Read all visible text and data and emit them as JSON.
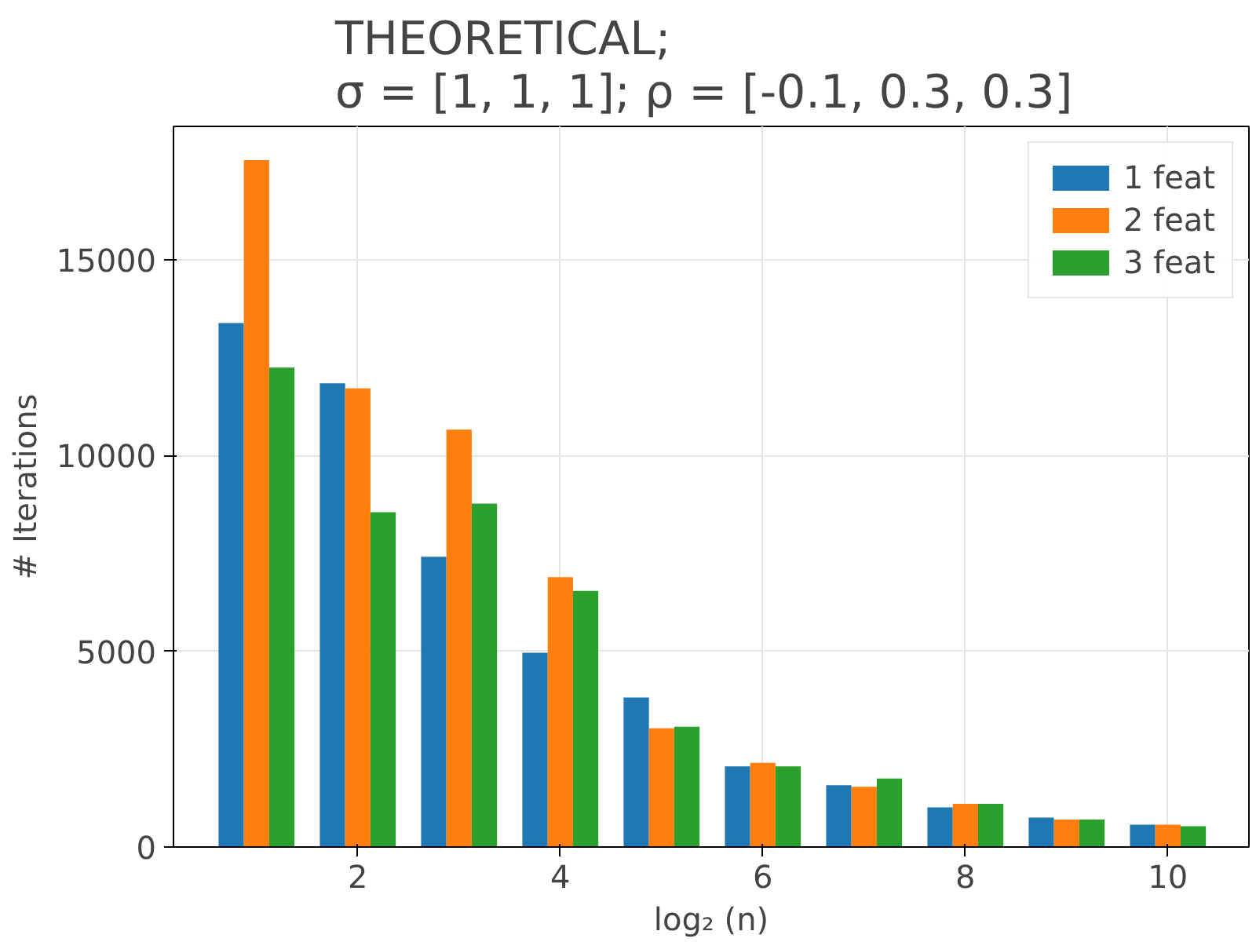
{
  "chart_data": {
    "type": "bar",
    "title": "THEORETICAL;\nσ = [1, 1, 1];  ρ = [-0.1, 0.3, 0.3]",
    "xlabel": "log₂ (n)",
    "ylabel": "# Iterations",
    "x": [
      1,
      2,
      3,
      4,
      5,
      6,
      7,
      8,
      9,
      10
    ],
    "series": [
      {
        "name": "1 feat",
        "color": "#1f77b4",
        "values": [
          13380,
          11840,
          7410,
          4960,
          3820,
          2060,
          1580,
          1010,
          750,
          570
        ]
      },
      {
        "name": "2 feat",
        "color": "#ff7f0e",
        "values": [
          17540,
          11710,
          10660,
          6890,
          3030,
          2150,
          1540,
          1100,
          700,
          570
        ]
      },
      {
        "name": "3 feat",
        "color": "#2ca02c",
        "values": [
          12240,
          8550,
          8770,
          6540,
          3070,
          2060,
          1750,
          1100,
          700,
          530
        ]
      }
    ],
    "xlim": [
      0.18,
      10.8
    ],
    "xticks": [
      2,
      4,
      6,
      8,
      10
    ],
    "ylim": [
      0,
      18400
    ],
    "yticks": [
      0,
      5000,
      10000,
      15000
    ],
    "grid": true,
    "legend": "top right"
  }
}
